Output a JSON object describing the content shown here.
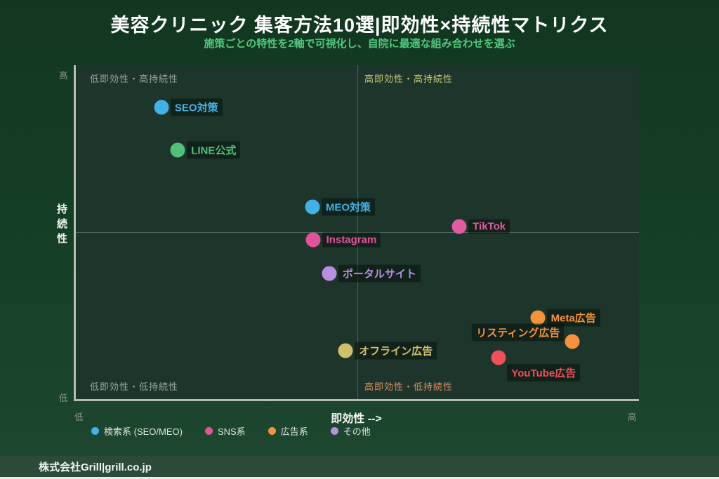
{
  "title": "美容クリニック 集客方法10選|即効性×持続性マトリクス",
  "subtitle": "施策ごとの特性を2軸で可視化し、自院に最適な組み合わせを選ぶ",
  "colors": {
    "background_top": "#123720",
    "background_bottom": "#1e4730",
    "panel": "#1e352b",
    "axis_line": "#b5bdb5",
    "subtitle_green": "#4fc87c",
    "footer_band": "#2b4a38"
  },
  "axes": {
    "y_label": "持続性",
    "x_label": "即効性 -->",
    "y_tick_high": "高",
    "y_tick_low": "低",
    "x_tick_low": "低",
    "x_tick_high": "高"
  },
  "quadrants": [
    {
      "key": "tl",
      "label": "低即効性・高持続性",
      "color": "#97a59c"
    },
    {
      "key": "tr",
      "label": "高即効性・高持続性",
      "color": "#cdc87f"
    },
    {
      "key": "bl",
      "label": "低即効性・低持続性",
      "color": "#97a59c"
    },
    {
      "key": "br",
      "label": "高即効性・低持続性",
      "color": "#db9064"
    }
  ],
  "chart_data": {
    "type": "scatter",
    "title": "美容クリニック 集客方法10選|即効性×持続性マトリクス",
    "xlabel": "即効性 -->",
    "ylabel": "持続性",
    "xlim": [
      0,
      100
    ],
    "ylim": [
      0,
      100
    ],
    "grid": "quadrant-dividers-only",
    "legend_position": "bottom-left",
    "points": [
      {
        "id": "seo",
        "label": "SEO対策",
        "x": 15.2,
        "y": 87.5,
        "color": "#41b2e8",
        "label_pos": "right"
      },
      {
        "id": "line",
        "label": "LINE公式",
        "x": 18.1,
        "y": 74.5,
        "color": "#52c077",
        "label_pos": "right"
      },
      {
        "id": "meo",
        "label": "MEO対策",
        "x": 42.0,
        "y": 57.6,
        "color": "#41b2e8",
        "label_pos": "right"
      },
      {
        "id": "tiktok",
        "label": "TikTok",
        "x": 68.1,
        "y": 51.6,
        "color": "#e25ba2",
        "label_pos": "right"
      },
      {
        "id": "instagram",
        "label": "Instagram",
        "x": 42.1,
        "y": 47.6,
        "color": "#e2539b",
        "label_pos": "right"
      },
      {
        "id": "portal",
        "label": "ポータルサイト",
        "x": 45.0,
        "y": 37.6,
        "color": "#b890e2",
        "label_pos": "right"
      },
      {
        "id": "meta",
        "label": "Meta広告",
        "x": 82.0,
        "y": 24.4,
        "color": "#f5923c",
        "label_pos": "right"
      },
      {
        "id": "listing",
        "label": "リスティング広告",
        "x": 88.2,
        "y": 17.3,
        "color": "#f5923c",
        "label_pos": "left"
      },
      {
        "id": "offline",
        "label": "オフライン広告",
        "x": 47.9,
        "y": 14.4,
        "color": "#cfc06a",
        "label_pos": "right"
      },
      {
        "id": "youtube",
        "label": "YouTube広告",
        "x": 75.1,
        "y": 12.5,
        "color": "#f25058",
        "label_pos": "below"
      }
    ]
  },
  "legend": {
    "items": [
      {
        "label": "検索系 (SEO/MEO)",
        "color": "#41b2e8"
      },
      {
        "label": "SNS系",
        "color": "#e2539b"
      },
      {
        "label": "広告系",
        "color": "#f5923c"
      },
      {
        "label": "その他",
        "color": "#b890e2"
      }
    ]
  },
  "footer": {
    "text": "株式会社Grill|grill.co.jp"
  }
}
